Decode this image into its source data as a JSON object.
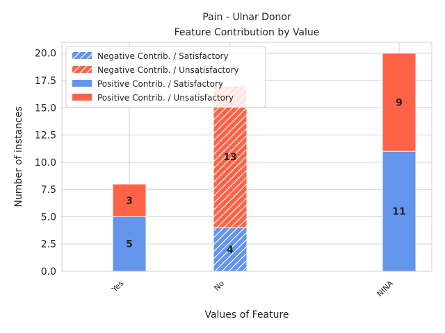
{
  "chart_data": {
    "type": "bar",
    "stacked": true,
    "title": "Pain - Ulnar Donor",
    "subtitle": "Feature Contribution by Value",
    "xlabel": "Values of Feature",
    "ylabel": "Number of instances",
    "categories": [
      "Yes",
      "No",
      "NINA"
    ],
    "ylim": [
      0,
      21
    ],
    "yticks": [
      0.0,
      2.5,
      5.0,
      7.5,
      10.0,
      12.5,
      15.0,
      17.5,
      20.0
    ],
    "ytick_labels": [
      "0.0",
      "2.5",
      "5.0",
      "7.5",
      "10.0",
      "12.5",
      "15.0",
      "17.5",
      "20.0"
    ],
    "grid": true,
    "legend_position": "top-left",
    "series": [
      {
        "name": "Negative Contrib. / Satisfactory",
        "values": [
          0,
          4,
          0
        ],
        "color": "#6495ED",
        "hatch": true
      },
      {
        "name": "Negative Contrib. / Unsatisfactory",
        "values": [
          0,
          13,
          0
        ],
        "color": "#FF6347",
        "hatch": true
      },
      {
        "name": "Positive Contrib. / Satisfactory",
        "values": [
          5,
          0,
          11
        ],
        "color": "#6495ED",
        "hatch": false
      },
      {
        "name": "Positive Contrib. / Unsatisfactory",
        "values": [
          3,
          0,
          9
        ],
        "color": "#FF6347",
        "hatch": false
      }
    ]
  }
}
